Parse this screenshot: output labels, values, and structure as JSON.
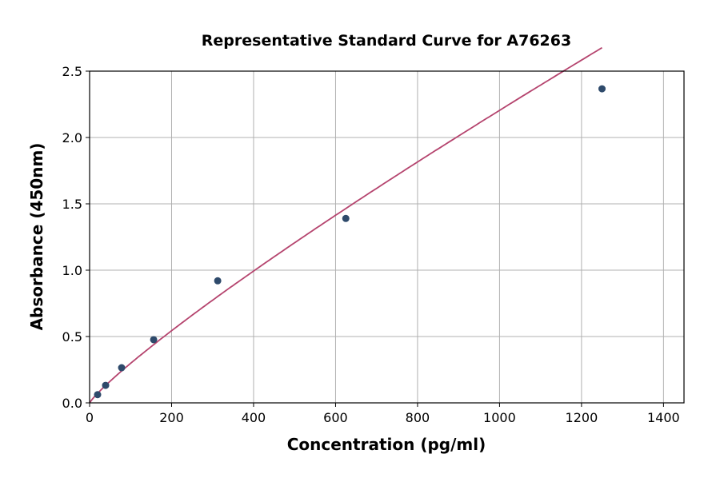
{
  "chart_data": {
    "type": "scatter",
    "title": "Representative Standard Curve for A76263",
    "xlabel": "Concentration (pg/ml)",
    "ylabel": "Absorbance (450nm)",
    "xlim": [
      0,
      1450
    ],
    "ylim": [
      0,
      2.5
    ],
    "xticks": [
      0,
      200,
      400,
      600,
      800,
      1000,
      1200,
      1400
    ],
    "yticks": [
      0.0,
      0.5,
      1.0,
      1.5,
      2.0,
      2.5
    ],
    "grid": true,
    "series": [
      {
        "kind": "points",
        "x": [
          19.53,
          39.06,
          78.13,
          156.25,
          312.5,
          625,
          1250
        ],
        "y": [
          0.062,
          0.132,
          0.265,
          0.476,
          0.92,
          1.39,
          2.367
        ],
        "color": "#2e4a6b"
      },
      {
        "kind": "fit-curve",
        "color": "#b5446e"
      }
    ]
  }
}
